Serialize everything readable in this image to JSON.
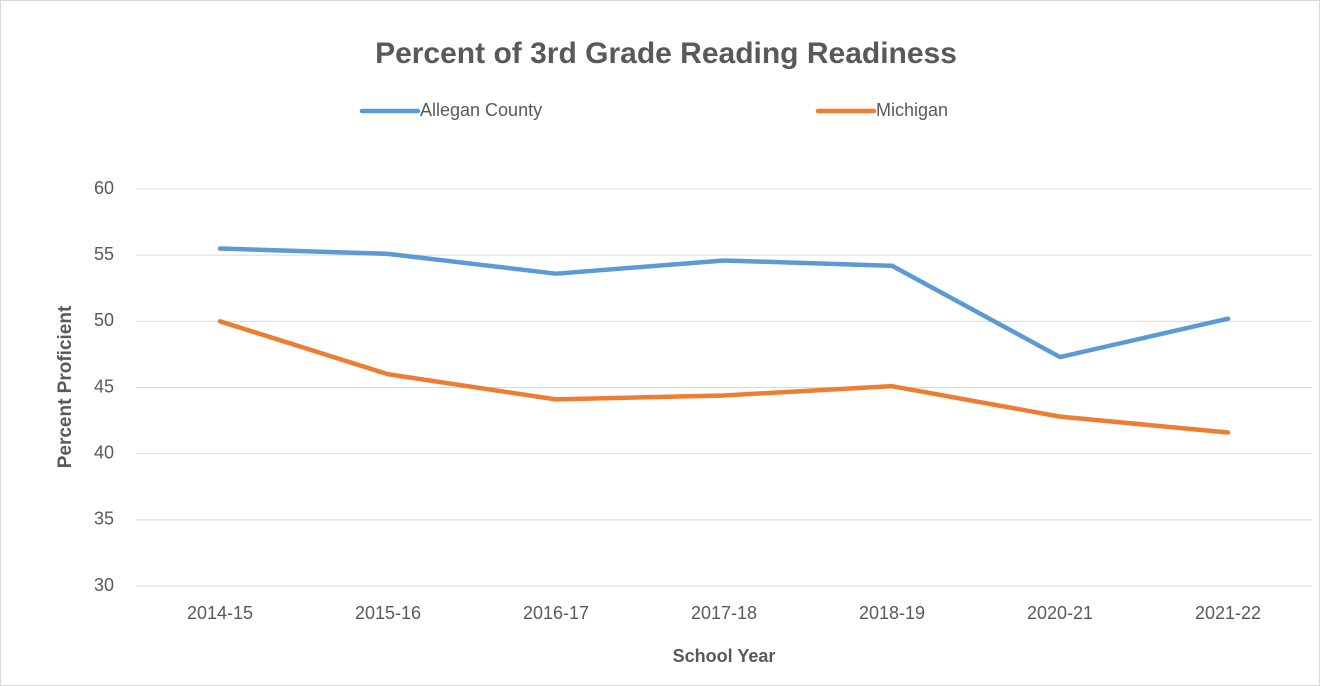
{
  "chart_data": {
    "type": "line",
    "title": "Percent of 3rd Grade Reading Readiness",
    "x_label": "School Year",
    "y_label": "Percent Proficient",
    "categories": [
      "2014-15",
      "2015-16",
      "2016-17",
      "2017-18",
      "2018-19",
      "2020-21",
      "2021-22"
    ],
    "series": [
      {
        "name": "Allegan County",
        "color": "#5b9bd5",
        "values": [
          55.5,
          55.1,
          53.6,
          54.6,
          54.2,
          47.3,
          50.2
        ]
      },
      {
        "name": "Michigan",
        "color": "#ed7d31",
        "values": [
          50.0,
          46.0,
          44.1,
          44.4,
          45.1,
          42.8,
          41.6
        ]
      }
    ],
    "ylim": [
      30,
      60
    ],
    "yticks": [
      30,
      35,
      40,
      45,
      50,
      55,
      60
    ],
    "grid": true,
    "legend": "top"
  }
}
